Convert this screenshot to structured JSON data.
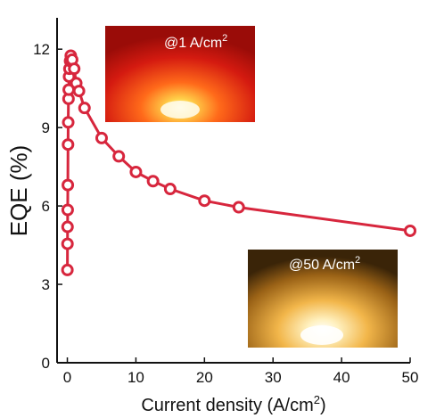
{
  "chart_data": {
    "type": "line",
    "xlabel": "Current density (A/cm",
    "xlabel_sup": "2",
    "xlabel_end": ")",
    "ylabel": "EQE  (%)",
    "xlim": [
      -1.5,
      50
    ],
    "ylim": [
      0,
      13.2
    ],
    "xticks": [
      0,
      10,
      20,
      30,
      40,
      50
    ],
    "yticks": [
      0,
      3,
      6,
      9,
      12
    ],
    "series": [
      {
        "color": "#d7263d",
        "x": [
          0.01,
          0.02,
          0.03,
          0.05,
          0.07,
          0.1,
          0.13,
          0.17,
          0.2,
          0.25,
          0.3,
          0.4,
          0.5,
          0.7,
          1.0,
          1.3,
          1.7,
          2.5,
          5.0,
          7.5,
          10.0,
          12.5,
          15.0,
          20.0,
          25.0,
          50.0
        ],
        "y": [
          3.55,
          4.55,
          5.2,
          5.85,
          6.8,
          8.35,
          9.2,
          10.1,
          10.45,
          10.95,
          11.25,
          11.55,
          11.75,
          11.6,
          11.25,
          10.7,
          10.4,
          9.75,
          8.6,
          7.9,
          7.3,
          6.95,
          6.65,
          6.2,
          5.95,
          5.05
        ]
      }
    ],
    "insets": [
      {
        "label": "@1 A/cm",
        "label_sup": "2",
        "glow_color": "#ffd24a",
        "base_color": "#c41410"
      },
      {
        "label": "@50 A/cm",
        "label_sup": "2",
        "glow_color": "#fff1c0",
        "base_color": "#a86a10"
      }
    ]
  },
  "colors": {
    "series": "#d7263d",
    "axis": "#111111",
    "background": "#ffffff"
  }
}
